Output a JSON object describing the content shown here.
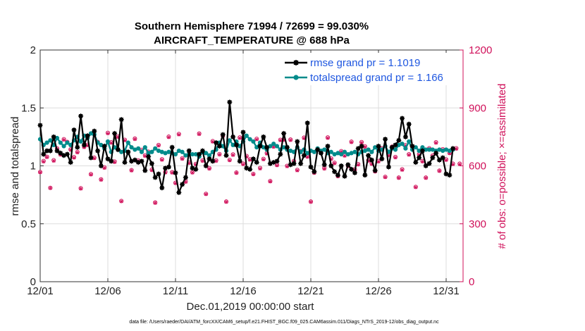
{
  "chart_data": {
    "type": "line",
    "title": "Southern Hemisphere 71994 / 72699 = 99.030%",
    "subtitle": "AIRCRAFT_TEMPERATURE @ 688 hPa",
    "xlabel": "Dec.01,2019 00:00:00 start",
    "ylabel": "rmse and totalspread",
    "y2label": "# of obs: o=possible; ×=assimilated",
    "footer": "data file: /Users/raeder/DAI/ATM_forcXX/CAM6_setup/f.e21.FHIST_BGC.f09_025.CAM6assim.011/Diags_NTrS_2019-12/obs_diag_output.nc",
    "xlim": [
      1,
      32.25
    ],
    "ylim": [
      0,
      2
    ],
    "y2lim": [
      0,
      1200
    ],
    "xticks": [
      1,
      6,
      11,
      16,
      21,
      26,
      31
    ],
    "xtick_labels": [
      "12/01",
      "12/06",
      "12/11",
      "12/16",
      "12/21",
      "12/26",
      "12/31"
    ],
    "yticks": [
      0,
      0.5,
      1,
      1.5,
      2
    ],
    "ytick_labels": [
      "0",
      "0.5",
      "1",
      "1.5",
      "2"
    ],
    "y2ticks": [
      0,
      300,
      600,
      900,
      1200
    ],
    "y2tick_labels": [
      "0",
      "300",
      "600",
      "900",
      "1200"
    ],
    "grid": true,
    "legend_position": "top-right",
    "colors": {
      "rmse": "#000000",
      "spread": "#008b8b",
      "obs": "#d0105a",
      "legend_text": "#1f57e0",
      "grid": "#dddddd"
    },
    "series": [
      {
        "name": "rmse grand pr = 1.1019",
        "axis": "left",
        "x_start": 1.0,
        "x_step": 0.25,
        "values": [
          1.35,
          1.1,
          1.13,
          1.13,
          1.25,
          1.13,
          1.11,
          1.09,
          1.1,
          1.03,
          1.31,
          1.16,
          1.43,
          1.18,
          1.26,
          1.07,
          1.3,
          1.13,
          1.0,
          1.17,
          1.06,
          1.04,
          1.28,
          1.14,
          1.4,
          1.03,
          1.12,
          1.04,
          1.05,
          1.03,
          1.04,
          0.96,
          1.08,
          1.02,
          0.9,
          0.93,
          0.81,
          0.98,
          0.99,
          1.16,
          0.94,
          0.77,
          0.84,
          0.9,
          1.13,
          0.98,
          0.97,
          1.1,
          1.13,
          1.0,
          1.06,
          1.04,
          1.2,
          1.17,
          1.27,
          1.09,
          1.55,
          1.25,
          1.18,
          1.04,
          1.29,
          0.98,
          0.97,
          1.06,
          1.03,
          1.17,
          1.25,
          1.16,
          1.02,
          1.03,
          1.04,
          1.1,
          1.28,
          1.16,
          1.01,
          1.02,
          1.21,
          1.02,
          1.09,
          1.37,
          0.99,
          0.95,
          1.14,
          1.11,
          1.01,
          1.17,
          1.0,
          0.95,
          0.92,
          1.0,
          0.91,
          1.01,
          0.97,
          0.94,
          1.15,
          1.17,
          0.92,
          1.09,
          1.05,
          0.96,
          1.17,
          1.06,
          1.23,
          0.99,
          1.16,
          1.18,
          1.22,
          1.41,
          1.25,
          1.36,
          1.17,
          1.03,
          1.07,
          1.13,
          1.0,
          1.02,
          1.07,
          1.11,
          1.05,
          1.07,
          0.93,
          0.92,
          1.15
        ]
      },
      {
        "name": "totalspread grand pr = 1.166",
        "axis": "left",
        "x_start": 1.0,
        "x_step": 0.25,
        "values": [
          1.23,
          1.18,
          1.2,
          1.22,
          1.18,
          1.24,
          1.2,
          1.17,
          1.2,
          1.18,
          1.22,
          1.25,
          1.21,
          1.26,
          1.24,
          1.28,
          1.27,
          1.2,
          1.18,
          1.15,
          1.21,
          1.12,
          1.16,
          1.14,
          1.12,
          1.13,
          1.2,
          1.16,
          1.14,
          1.15,
          1.12,
          1.16,
          1.11,
          1.12,
          1.15,
          1.13,
          1.12,
          1.11,
          1.12,
          1.11,
          1.1,
          1.13,
          1.12,
          1.09,
          1.1,
          1.1,
          1.1,
          1.08,
          1.12,
          1.11,
          1.09,
          1.12,
          1.14,
          1.2,
          1.17,
          1.13,
          1.22,
          1.18,
          1.21,
          1.17,
          1.21,
          1.26,
          1.23,
          1.21,
          1.16,
          1.2,
          1.16,
          1.14,
          1.17,
          1.19,
          1.17,
          1.14,
          1.16,
          1.14,
          1.13,
          1.12,
          1.16,
          1.12,
          1.14,
          1.11,
          1.13,
          1.12,
          1.15,
          1.13,
          1.14,
          1.11,
          1.12,
          1.1,
          1.11,
          1.1,
          1.12,
          1.1,
          1.11,
          1.12,
          1.1,
          1.12,
          1.13,
          1.14,
          1.12,
          1.16,
          1.13,
          1.14,
          1.17,
          1.12,
          1.15,
          1.14,
          1.18,
          1.19,
          1.15,
          1.21,
          1.14,
          1.16,
          1.13,
          1.16,
          1.14,
          1.14,
          1.14,
          1.13,
          1.14,
          1.13,
          1.14,
          1.13,
          1.14
        ]
      },
      {
        "name": "# of obs possible",
        "axis": "right",
        "marker": "circle",
        "x_start": 1.0,
        "x_step": 0.25,
        "values": [
          568,
          625,
          647,
          486,
          629,
          690,
          660,
          738,
          724,
          685,
          645,
          672,
          484,
          699,
          709,
          557,
          642,
          724,
          530,
          592,
          771,
          722,
          622,
          752,
          418,
          735,
          671,
          578,
          741,
          628,
          683,
          654,
          673,
          580,
          410,
          708,
          634,
          568,
          751,
          567,
          512,
          765,
          639,
          519,
          617,
          567,
          610,
          767,
          628,
          455,
          588,
          728,
          628,
          661,
          756,
          415,
          631,
          659,
          565,
          747,
          611,
          651,
          634,
          558,
          740,
          589,
          636,
          666,
          521,
          701,
          605,
          735,
          737,
          600,
          736,
          625,
          579,
          676,
          746,
          649,
          415,
          565,
          684,
          669,
          588,
          747,
          638,
          616,
          547,
          676,
          655,
          600,
          725,
          581,
          609,
          723,
          701,
          629,
          612,
          572,
          625,
          691,
          543,
          657,
          699,
          646,
          539,
          582,
          707,
          660,
          701,
          491,
          660,
          625,
          539,
          691,
          653,
          722,
          575,
          686,
          633,
          667,
          611,
          691,
          611
        ]
      },
      {
        "name": "# of obs assimilated",
        "axis": "right",
        "marker": "x",
        "x_start": 1.0,
        "x_step": 0.25,
        "values": [
          566,
          622,
          645,
          485,
          626,
          688,
          657,
          735,
          721,
          683,
          642,
          669,
          482,
          696,
          706,
          555,
          639,
          721,
          528,
          589,
          768,
          719,
          619,
          749,
          416,
          732,
          668,
          576,
          738,
          625,
          680,
          651,
          670,
          577,
          408,
          705,
          631,
          565,
          748,
          565,
          510,
          762,
          636,
          517,
          614,
          565,
          607,
          764,
          625,
          453,
          585,
          725,
          625,
          658,
          753,
          413,
          628,
          656,
          563,
          744,
          608,
          648,
          631,
          556,
          737,
          586,
          633,
          663,
          519,
          698,
          602,
          732,
          734,
          597,
          733,
          622,
          576,
          673,
          743,
          646,
          413,
          563,
          681,
          666,
          585,
          744,
          635,
          613,
          545,
          673,
          652,
          597,
          722,
          579,
          606,
          720,
          698,
          626,
          609,
          570,
          622,
          688,
          541,
          654,
          696,
          643,
          537,
          579,
          704,
          657,
          698,
          489,
          657,
          622,
          537,
          688,
          650,
          719,
          573,
          683,
          630,
          664,
          608,
          688,
          608
        ]
      }
    ]
  }
}
